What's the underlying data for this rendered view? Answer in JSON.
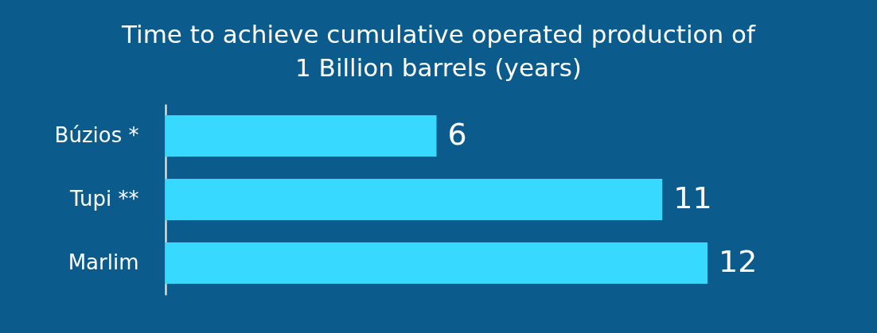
{
  "chart_data": {
    "type": "bar",
    "orientation": "horizontal",
    "title": "Time to achieve cumulative operated production of 1 Billion barrels (years)",
    "categories": [
      "Búzios *",
      "Tupi **",
      "Marlim"
    ],
    "values": [
      6,
      11,
      12
    ],
    "color": "#38d9ff",
    "data_labels": true
  }
}
